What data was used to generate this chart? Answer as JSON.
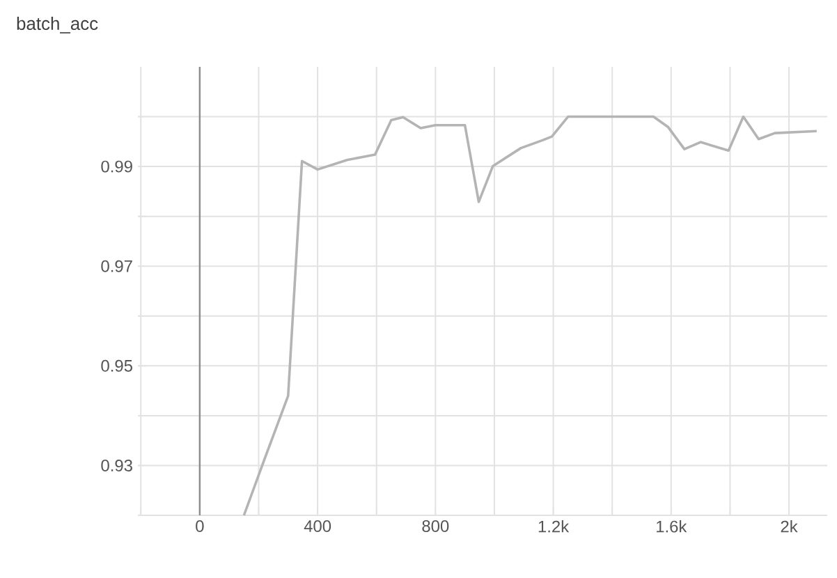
{
  "chart_data": {
    "type": "line",
    "title": "batch_acc",
    "x": [
      150,
      220,
      300,
      347,
      400,
      500,
      595,
      650,
      690,
      750,
      800,
      900,
      947,
      995,
      1090,
      1165,
      1195,
      1250,
      1540,
      1590,
      1645,
      1700,
      1795,
      1845,
      1897,
      1952,
      2094
    ],
    "series": [
      {
        "color": "#b4b4b4",
        "values": [
          0.92,
          0.9313,
          0.944,
          0.9911,
          0.9894,
          0.9913,
          0.9924,
          0.9993,
          0.9999,
          0.9977,
          0.9983,
          0.9983,
          0.9829,
          0.9901,
          0.9937,
          0.9953,
          0.996,
          1.0,
          1.0,
          0.9979,
          0.9935,
          0.9949,
          0.9932,
          1.0,
          0.9955,
          0.9967,
          0.9971
        ]
      }
    ],
    "xlim": [
      -210,
      2130
    ],
    "xticks": [
      {
        "value": -200,
        "label": null
      },
      0,
      {
        "value": 200,
        "label": null
      },
      400,
      {
        "value": 600,
        "label": null
      },
      800,
      {
        "value": 1000,
        "label": null
      },
      {
        "value": 1200,
        "label": "1.2k"
      },
      {
        "value": 1400,
        "label": null
      },
      {
        "value": 1600,
        "label": "1.6k"
      },
      {
        "value": 1800,
        "label": null
      },
      {
        "value": 2000,
        "label": "2k"
      }
    ],
    "ylim": [
      0.92,
      1.01
    ],
    "yticks": [
      {
        "value": 0.92,
        "label": null
      },
      0.93,
      {
        "value": 0.94,
        "label": null
      },
      0.95,
      {
        "value": 0.96,
        "label": null
      },
      0.97,
      {
        "value": 0.98,
        "label": null
      },
      0.99,
      {
        "value": 1.0,
        "label": null
      }
    ],
    "grid": true
  }
}
